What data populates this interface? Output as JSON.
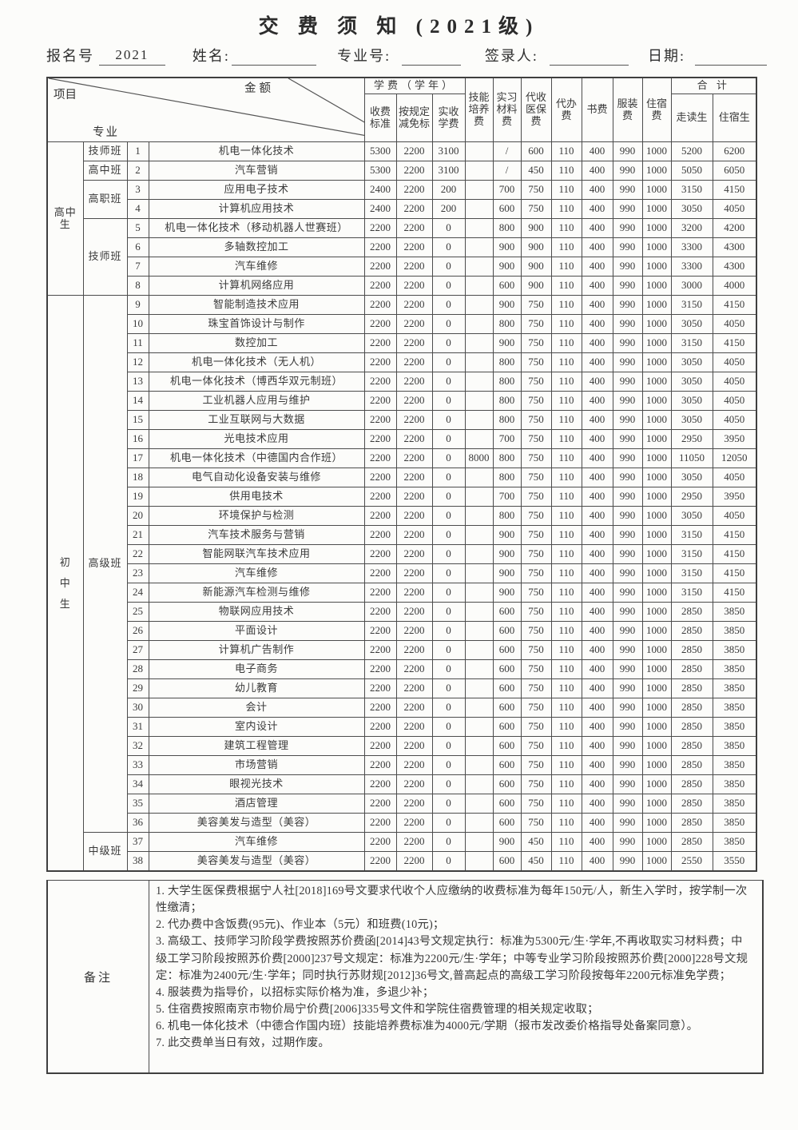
{
  "title": "交 费 须 知 (2021级)",
  "form": {
    "reg_no_label": "报名号",
    "reg_no_value": "2021",
    "name_label": "姓名:",
    "major_no_label": "专业号:",
    "signer_label": "签录人:",
    "date_label": "日期:"
  },
  "table": {
    "corner": {
      "amount": "金额",
      "item": "项目",
      "major": "专业"
    },
    "headers": {
      "tuition_group": "学费（学年）",
      "tuition_sub": [
        "收费标准",
        "按规定减免标",
        "实收学费"
      ],
      "skill": "技能培养费",
      "material": "实习材料费",
      "medical": "代收医保费",
      "agency": "代办费",
      "book": "书费",
      "uniform": "服装费",
      "dorm": "住宿费",
      "total_group": "合 计",
      "total_sub": [
        "走读生",
        "住宿生"
      ]
    },
    "student_groups": [
      {
        "id": "senior-high",
        "label": "高中生",
        "rows": 8,
        "vertical": false
      },
      {
        "id": "junior-high",
        "label": "初中生",
        "rows": 30,
        "vertical": true
      }
    ],
    "class_groups": [
      {
        "label": "技师班",
        "rows": 1
      },
      {
        "label": "高中班",
        "rows": 1
      },
      {
        "label": "高职班",
        "rows": 2
      },
      {
        "label": "技师班",
        "rows": 4
      },
      {
        "label": "高级班",
        "rows": 28
      },
      {
        "label": "中级班",
        "rows": 2
      }
    ],
    "cell_names": [
      "row-number",
      "major-name",
      "tuition-standard",
      "tuition-reduction",
      "tuition-actual",
      "skill-fee",
      "material-fee",
      "medical-fee",
      "agency-fee",
      "book-fee",
      "uniform-fee",
      "dorm-fee",
      "total-day-student",
      "total-boarding-student"
    ],
    "rows": [
      [
        "1",
        "机电一体化技术",
        "5300",
        "2200",
        "3100",
        "",
        "/",
        "600",
        "110",
        "400",
        "990",
        "1000",
        "5200",
        "6200"
      ],
      [
        "2",
        "汽车营销",
        "5300",
        "2200",
        "3100",
        "",
        "/",
        "450",
        "110",
        "400",
        "990",
        "1000",
        "5050",
        "6050"
      ],
      [
        "3",
        "应用电子技术",
        "2400",
        "2200",
        "200",
        "",
        "700",
        "750",
        "110",
        "400",
        "990",
        "1000",
        "3150",
        "4150"
      ],
      [
        "4",
        "计算机应用技术",
        "2400",
        "2200",
        "200",
        "",
        "600",
        "750",
        "110",
        "400",
        "990",
        "1000",
        "3050",
        "4050"
      ],
      [
        "5",
        "机电一体化技术（移动机器人世赛班）",
        "2200",
        "2200",
        "0",
        "",
        "800",
        "900",
        "110",
        "400",
        "990",
        "1000",
        "3200",
        "4200"
      ],
      [
        "6",
        "多轴数控加工",
        "2200",
        "2200",
        "0",
        "",
        "900",
        "900",
        "110",
        "400",
        "990",
        "1000",
        "3300",
        "4300"
      ],
      [
        "7",
        "汽车维修",
        "2200",
        "2200",
        "0",
        "",
        "900",
        "900",
        "110",
        "400",
        "990",
        "1000",
        "3300",
        "4300"
      ],
      [
        "8",
        "计算机网络应用",
        "2200",
        "2200",
        "0",
        "",
        "600",
        "900",
        "110",
        "400",
        "990",
        "1000",
        "3000",
        "4000"
      ],
      [
        "9",
        "智能制造技术应用",
        "2200",
        "2200",
        "0",
        "",
        "900",
        "750",
        "110",
        "400",
        "990",
        "1000",
        "3150",
        "4150"
      ],
      [
        "10",
        "珠宝首饰设计与制作",
        "2200",
        "2200",
        "0",
        "",
        "800",
        "750",
        "110",
        "400",
        "990",
        "1000",
        "3050",
        "4050"
      ],
      [
        "11",
        "数控加工",
        "2200",
        "2200",
        "0",
        "",
        "900",
        "750",
        "110",
        "400",
        "990",
        "1000",
        "3150",
        "4150"
      ],
      [
        "12",
        "机电一体化技术（无人机）",
        "2200",
        "2200",
        "0",
        "",
        "800",
        "750",
        "110",
        "400",
        "990",
        "1000",
        "3050",
        "4050"
      ],
      [
        "13",
        "机电一体化技术（博西华双元制班）",
        "2200",
        "2200",
        "0",
        "",
        "800",
        "750",
        "110",
        "400",
        "990",
        "1000",
        "3050",
        "4050"
      ],
      [
        "14",
        "工业机器人应用与维护",
        "2200",
        "2200",
        "0",
        "",
        "800",
        "750",
        "110",
        "400",
        "990",
        "1000",
        "3050",
        "4050"
      ],
      [
        "15",
        "工业互联网与大数据",
        "2200",
        "2200",
        "0",
        "",
        "800",
        "750",
        "110",
        "400",
        "990",
        "1000",
        "3050",
        "4050"
      ],
      [
        "16",
        "光电技术应用",
        "2200",
        "2200",
        "0",
        "",
        "700",
        "750",
        "110",
        "400",
        "990",
        "1000",
        "2950",
        "3950"
      ],
      [
        "17",
        "机电一体化技术（中德国内合作班）",
        "2200",
        "2200",
        "0",
        "8000",
        "800",
        "750",
        "110",
        "400",
        "990",
        "1000",
        "11050",
        "12050"
      ],
      [
        "18",
        "电气自动化设备安装与维修",
        "2200",
        "2200",
        "0",
        "",
        "800",
        "750",
        "110",
        "400",
        "990",
        "1000",
        "3050",
        "4050"
      ],
      [
        "19",
        "供用电技术",
        "2200",
        "2200",
        "0",
        "",
        "700",
        "750",
        "110",
        "400",
        "990",
        "1000",
        "2950",
        "3950"
      ],
      [
        "20",
        "环境保护与检测",
        "2200",
        "2200",
        "0",
        "",
        "800",
        "750",
        "110",
        "400",
        "990",
        "1000",
        "3050",
        "4050"
      ],
      [
        "21",
        "汽车技术服务与营销",
        "2200",
        "2200",
        "0",
        "",
        "900",
        "750",
        "110",
        "400",
        "990",
        "1000",
        "3150",
        "4150"
      ],
      [
        "22",
        "智能网联汽车技术应用",
        "2200",
        "2200",
        "0",
        "",
        "900",
        "750",
        "110",
        "400",
        "990",
        "1000",
        "3150",
        "4150"
      ],
      [
        "23",
        "汽车维修",
        "2200",
        "2200",
        "0",
        "",
        "900",
        "750",
        "110",
        "400",
        "990",
        "1000",
        "3150",
        "4150"
      ],
      [
        "24",
        "新能源汽车检测与维修",
        "2200",
        "2200",
        "0",
        "",
        "900",
        "750",
        "110",
        "400",
        "990",
        "1000",
        "3150",
        "4150"
      ],
      [
        "25",
        "物联网应用技术",
        "2200",
        "2200",
        "0",
        "",
        "600",
        "750",
        "110",
        "400",
        "990",
        "1000",
        "2850",
        "3850"
      ],
      [
        "26",
        "平面设计",
        "2200",
        "2200",
        "0",
        "",
        "600",
        "750",
        "110",
        "400",
        "990",
        "1000",
        "2850",
        "3850"
      ],
      [
        "27",
        "计算机广告制作",
        "2200",
        "2200",
        "0",
        "",
        "600",
        "750",
        "110",
        "400",
        "990",
        "1000",
        "2850",
        "3850"
      ],
      [
        "28",
        "电子商务",
        "2200",
        "2200",
        "0",
        "",
        "600",
        "750",
        "110",
        "400",
        "990",
        "1000",
        "2850",
        "3850"
      ],
      [
        "29",
        "幼儿教育",
        "2200",
        "2200",
        "0",
        "",
        "600",
        "750",
        "110",
        "400",
        "990",
        "1000",
        "2850",
        "3850"
      ],
      [
        "30",
        "会计",
        "2200",
        "2200",
        "0",
        "",
        "600",
        "750",
        "110",
        "400",
        "990",
        "1000",
        "2850",
        "3850"
      ],
      [
        "31",
        "室内设计",
        "2200",
        "2200",
        "0",
        "",
        "600",
        "750",
        "110",
        "400",
        "990",
        "1000",
        "2850",
        "3850"
      ],
      [
        "32",
        "建筑工程管理",
        "2200",
        "2200",
        "0",
        "",
        "600",
        "750",
        "110",
        "400",
        "990",
        "1000",
        "2850",
        "3850"
      ],
      [
        "33",
        "市场营销",
        "2200",
        "2200",
        "0",
        "",
        "600",
        "750",
        "110",
        "400",
        "990",
        "1000",
        "2850",
        "3850"
      ],
      [
        "34",
        "眼视光技术",
        "2200",
        "2200",
        "0",
        "",
        "600",
        "750",
        "110",
        "400",
        "990",
        "1000",
        "2850",
        "3850"
      ],
      [
        "35",
        "酒店管理",
        "2200",
        "2200",
        "0",
        "",
        "600",
        "750",
        "110",
        "400",
        "990",
        "1000",
        "2850",
        "3850"
      ],
      [
        "36",
        "美容美发与造型（美容）",
        "2200",
        "2200",
        "0",
        "",
        "600",
        "750",
        "110",
        "400",
        "990",
        "1000",
        "2850",
        "3850"
      ],
      [
        "37",
        "汽车维修",
        "2200",
        "2200",
        "0",
        "",
        "900",
        "450",
        "110",
        "400",
        "990",
        "1000",
        "2850",
        "3850"
      ],
      [
        "38",
        "美容美发与造型（美容）",
        "2200",
        "2200",
        "0",
        "",
        "600",
        "450",
        "110",
        "400",
        "990",
        "1000",
        "2550",
        "3550"
      ]
    ]
  },
  "remarks": {
    "label": "备注",
    "notes": [
      "1. 大学生医保费根据宁人社[2018]169号文要求代收个人应缴纳的收费标准为每年150元/人，新生入学时，按学制一次性缴清；",
      "2. 代办费中含饭费(95元)、作业本（5元）和班费(10元)；",
      "3. 高级工、技师学习阶段学费按照苏价费函[2014]43号文规定执行：标准为5300元/生·学年,不再收取实习材料费；中级工学习阶段按照苏价费[2000]237号文规定：标准为2200元/生·学年；中等专业学习阶段按照苏价费[2000]228号文规定：标准为2400元/生·学年；同时执行苏财规[2012]36号文,普高起点的高级工学习阶段按每年2200元标准免学费；",
      "4. 服装费为指导价，以招标实际价格为准，多退少补；",
      "5. 住宿费按照南京市物价局宁价费[2006]335号文件和学院住宿费管理的相关规定收取；",
      "6. 机电一体化技术（中德合作国内班）技能培养费标准为4000元/学期（报市发改委价格指导处备案同意）。",
      "7. 此交费单当日有效，过期作废。"
    ]
  }
}
